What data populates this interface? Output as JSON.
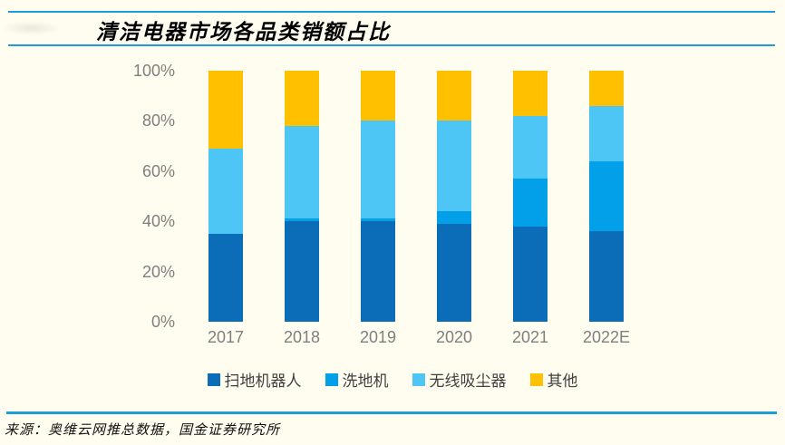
{
  "title": "清洁电器市场各品类销额占比",
  "source_note": "来源：奥维云网推总数据，国金证券研究所",
  "colors": {
    "background": "#FFFDF0",
    "rule_blue": "#1E9CD7",
    "axis_text": "#7F7F7F",
    "legend_text": "#3F3F3F",
    "title_text": "#000000",
    "source_text": "#111111"
  },
  "chart_data": {
    "type": "bar",
    "stacked": true,
    "title": "清洁电器市场各品类销额占比",
    "categories": [
      "2017",
      "2018",
      "2019",
      "2020",
      "2021",
      "2022E"
    ],
    "series": [
      {
        "name": "扫地机器人",
        "color": "#0B6DB7",
        "values": [
          35,
          40,
          40,
          39,
          38,
          36
        ]
      },
      {
        "name": "洗地机",
        "color": "#02A0E9",
        "values": [
          0,
          1,
          1,
          5,
          19,
          28
        ]
      },
      {
        "name": "无线吸尘器",
        "color": "#4DC5F5",
        "values": [
          34,
          37,
          39,
          36,
          25,
          22
        ]
      },
      {
        "name": "其他",
        "color": "#FFC000",
        "values": [
          31,
          22,
          20,
          20,
          18,
          14
        ]
      }
    ],
    "unit": "percent",
    "ylim": [
      0,
      100
    ],
    "yticks": [
      "0%",
      "20%",
      "40%",
      "60%",
      "80%",
      "100%"
    ],
    "grid": false,
    "legend_position": "bottom"
  }
}
